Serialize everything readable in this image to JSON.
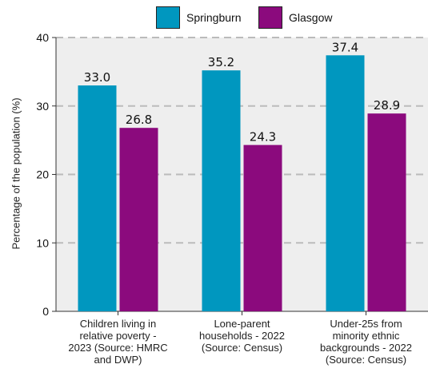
{
  "legend": {
    "springburn": "Springburn",
    "glasgow": "Glasgow"
  },
  "colors": {
    "springburn": "#0097bf",
    "glasgow": "#8b0a7d",
    "plot_bg": "#eeeeee",
    "grid": "#bbbbbb"
  },
  "chart_data": {
    "type": "bar",
    "categories": [
      "Children living in relative poverty - 2023 (Source: HMRC and DWP)",
      "Lone-parent households - 2022 (Source: Census)",
      "Under-25s from minority ethnic backgrounds - 2022 (Source: Census)"
    ],
    "category_lines": [
      [
        "Children living in",
        "relative poverty -",
        "2023 (Source: HMRC",
        "and DWP)"
      ],
      [
        "Lone-parent",
        "households - 2022",
        "(Source: Census)"
      ],
      [
        "Under-25s from",
        "minority ethnic",
        "backgrounds - 2022",
        "(Source: Census)"
      ]
    ],
    "series": [
      {
        "name": "Springburn",
        "values": [
          33.0,
          35.2,
          37.4
        ],
        "labels": [
          "33.0",
          "35.2",
          "37.4"
        ]
      },
      {
        "name": "Glasgow",
        "values": [
          26.8,
          24.3,
          28.9
        ],
        "labels": [
          "26.8",
          "24.3",
          "28.9"
        ]
      }
    ],
    "ylabel": "Percentage of the population (%)",
    "ylim": [
      0,
      40
    ],
    "yticks": [
      "0",
      "10",
      "20",
      "30",
      "40"
    ],
    "grid": true,
    "legend_position": "top"
  }
}
